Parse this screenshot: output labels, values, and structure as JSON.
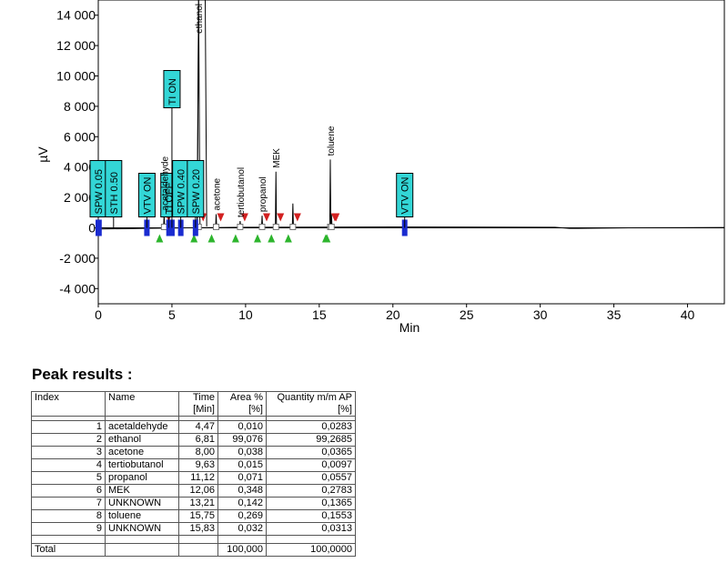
{
  "chart_data": {
    "type": "line",
    "xlabel": "Min",
    "ylabel": "µV",
    "xlim": [
      0,
      42.5
    ],
    "ylim": [
      -5000,
      15000
    ],
    "xticks": [
      0,
      5,
      10,
      15,
      20,
      25,
      30,
      35,
      40
    ],
    "yticks": [
      {
        "v": 14000,
        "label": "14 000"
      },
      {
        "v": 12000,
        "label": "12 000"
      },
      {
        "v": 10000,
        "label": "10 000"
      },
      {
        "v": 8000,
        "label": "8 000"
      },
      {
        "v": 6000,
        "label": "6 000"
      },
      {
        "v": 4000,
        "label": "4 000"
      },
      {
        "v": 2000,
        "label": "2 000"
      },
      {
        "v": 0,
        "label": "0"
      },
      {
        "v": -2000,
        "label": "-2 000"
      },
      {
        "v": -4000,
        "label": "-4 000"
      }
    ],
    "peaks": [
      {
        "t": 4.47,
        "h": 900,
        "name": "acetaldehyde"
      },
      {
        "t": 6.81,
        "h": 15000,
        "name": "ethanol"
      },
      {
        "t": 8.0,
        "h": 900,
        "name": "acetone"
      },
      {
        "t": 9.63,
        "h": 450,
        "name": "tertiobutanol"
      },
      {
        "t": 11.12,
        "h": 800,
        "name": "propanol"
      },
      {
        "t": 12.06,
        "h": 3700,
        "name": "MEK"
      },
      {
        "t": 13.21,
        "h": 1600,
        "name": ""
      },
      {
        "t": 15.75,
        "h": 4500,
        "name": "toluene"
      },
      {
        "t": 15.83,
        "h": 900,
        "name": ""
      }
    ],
    "events": [
      {
        "t": 0.0,
        "label": "SPW 0.05"
      },
      {
        "t": 0.05,
        "label": "STH 0.50"
      },
      {
        "t": 3.3,
        "label": "VTV ON"
      },
      {
        "t": 4.8,
        "label": "TI OFF"
      },
      {
        "t": 5.0,
        "label": "TI ON"
      },
      {
        "t": 5.6,
        "label": "SPW 0.40"
      },
      {
        "t": 6.6,
        "label": "SPW 0.20"
      },
      {
        "t": 20.8,
        "label": "VTV ON"
      }
    ]
  },
  "results": {
    "title": "Peak results :",
    "headers": {
      "index": "Index",
      "name": "Name",
      "time": "Time",
      "time_unit": "[Min]",
      "area": "Area %",
      "area_unit": "[%]",
      "qty": "Quantity m/m AP",
      "qty_unit": "[%]"
    },
    "rows": [
      {
        "index": "1",
        "name": "acetaldehyde",
        "time": "4,47",
        "area": "0,010",
        "qty": "0,0283"
      },
      {
        "index": "2",
        "name": "ethanol",
        "time": "6,81",
        "area": "99,076",
        "qty": "99,2685"
      },
      {
        "index": "3",
        "name": "acetone",
        "time": "8,00",
        "area": "0,038",
        "qty": "0,0365"
      },
      {
        "index": "4",
        "name": "tertiobutanol",
        "time": "9,63",
        "area": "0,015",
        "qty": "0,0097"
      },
      {
        "index": "5",
        "name": "propanol",
        "time": "11,12",
        "area": "0,071",
        "qty": "0,0557"
      },
      {
        "index": "6",
        "name": "MEK",
        "time": "12,06",
        "area": "0,348",
        "qty": "0,2783"
      },
      {
        "index": "7",
        "name": "UNKNOWN",
        "time": "13,21",
        "area": "0,142",
        "qty": "0,1365"
      },
      {
        "index": "8",
        "name": "toluene",
        "time": "15,75",
        "area": "0,269",
        "qty": "0,1553"
      },
      {
        "index": "9",
        "name": "UNKNOWN",
        "time": "15,83",
        "area": "0,032",
        "qty": "0,0313"
      }
    ],
    "total": {
      "label": "Total",
      "area": "100,000",
      "qty": "100,0000"
    }
  },
  "colors": {
    "trace": "#000000",
    "event_box": "#33d6d6",
    "event_marker": "#1a2bd0",
    "peak_start": "#2db52d",
    "peak_end": "#d22020"
  }
}
